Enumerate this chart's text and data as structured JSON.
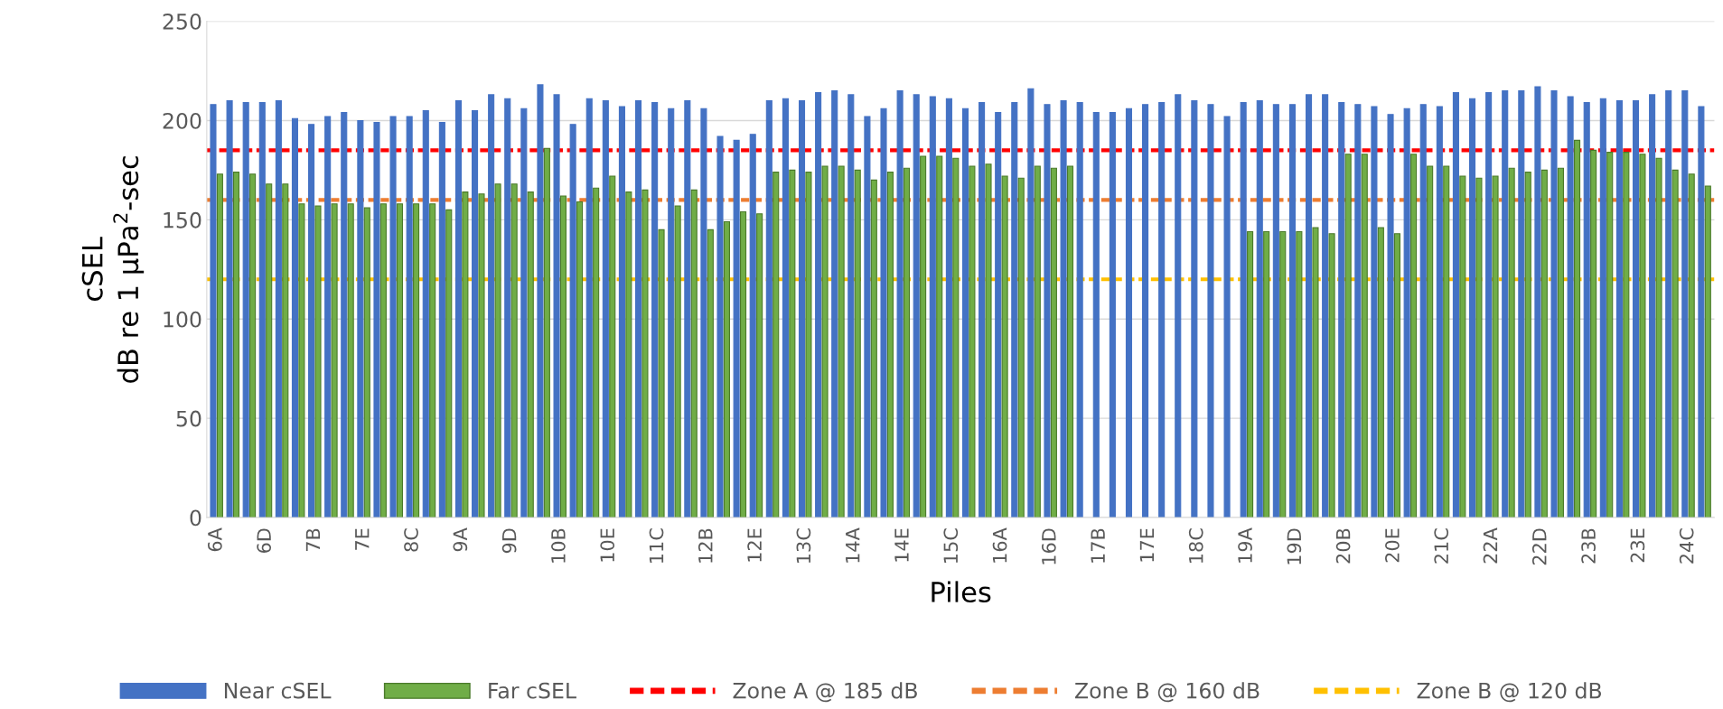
{
  "chart_data": {
    "type": "bar",
    "xlabel": "Piles",
    "ylabel": "cSEL\ndB re 1 μPa$^{2}$-sec",
    "categories": [
      "6A",
      null,
      null,
      "6D",
      null,
      null,
      "7B",
      null,
      null,
      "7E",
      null,
      null,
      "8C",
      null,
      null,
      "9A",
      null,
      null,
      "9D",
      null,
      null,
      "10B",
      null,
      null,
      "10E",
      null,
      null,
      "11C",
      null,
      null,
      "12B",
      null,
      null,
      "12E",
      null,
      null,
      "13C",
      null,
      null,
      "14A",
      null,
      null,
      "14E",
      null,
      null,
      "15C",
      null,
      null,
      "16A",
      null,
      null,
      "16D",
      null,
      null,
      "17B",
      null,
      null,
      "17E",
      null,
      null,
      "18C",
      null,
      null,
      "19A",
      null,
      null,
      "19D",
      null,
      null,
      "20B",
      null,
      null,
      "20E",
      null,
      null,
      "21C",
      null,
      null,
      "22A",
      null,
      null,
      "22D",
      null,
      null,
      "23B",
      null,
      null,
      "23E",
      null,
      null,
      "24C",
      null
    ],
    "series": [
      {
        "name": "Near cSEL",
        "color": "#4472c4",
        "values": [
          208,
          210,
          209,
          209,
          210,
          201,
          198,
          202,
          204,
          200,
          199,
          202,
          202,
          205,
          199,
          210,
          205,
          213,
          211,
          206,
          218,
          213,
          198,
          211,
          210,
          207,
          210,
          209,
          206,
          210,
          206,
          192,
          190,
          193,
          210,
          211,
          210,
          214,
          215,
          213,
          202,
          206,
          215,
          213,
          212,
          211,
          206,
          209,
          204,
          209,
          216,
          208,
          210,
          209,
          204,
          204,
          206,
          208,
          209,
          213,
          210,
          208,
          202,
          209,
          210,
          208,
          208,
          213,
          213,
          209,
          208,
          207,
          203,
          206,
          208,
          207,
          214,
          211,
          214,
          215,
          215,
          217,
          215,
          212,
          209,
          211,
          210,
          210,
          213,
          215,
          215,
          207
        ]
      },
      {
        "name": "Far cSEL",
        "color": "#70ad47",
        "values": [
          173,
          174,
          173,
          168,
          168,
          158,
          157,
          158,
          158,
          156,
          158,
          158,
          158,
          158,
          155,
          164,
          163,
          168,
          168,
          164,
          186,
          162,
          159,
          166,
          172,
          164,
          165,
          145,
          157,
          165,
          145,
          149,
          154,
          153,
          174,
          175,
          174,
          177,
          177,
          175,
          170,
          174,
          176,
          182,
          182,
          181,
          177,
          178,
          172,
          171,
          177,
          176,
          177,
          null,
          null,
          null,
          null,
          null,
          null,
          null,
          null,
          null,
          null,
          144,
          144,
          144,
          144,
          146,
          143,
          183,
          183,
          146,
          143,
          183,
          177,
          177,
          172,
          171,
          172,
          176,
          174,
          175,
          176,
          190,
          185,
          184,
          184,
          183,
          181,
          175,
          173,
          167
        ]
      }
    ],
    "ylim": [
      0,
      250
    ],
    "yticks": [
      0,
      50,
      100,
      150,
      200,
      250
    ],
    "grid": "y",
    "legend": "bottom",
    "ref_lines": [
      {
        "axis": "y",
        "value": 185,
        "label": "Zone A @ 185 dB",
        "color": "#ff0000",
        "line_style": "dashed"
      },
      {
        "axis": "y",
        "value": 160,
        "label": "Zone B @ 160 dB",
        "color": "#ed7d31",
        "line_style": "dashed"
      },
      {
        "axis": "y",
        "value": 120,
        "label": "Zone B @ 120 dB",
        "color": "#ffc000",
        "line_style": "dashed"
      }
    ]
  }
}
